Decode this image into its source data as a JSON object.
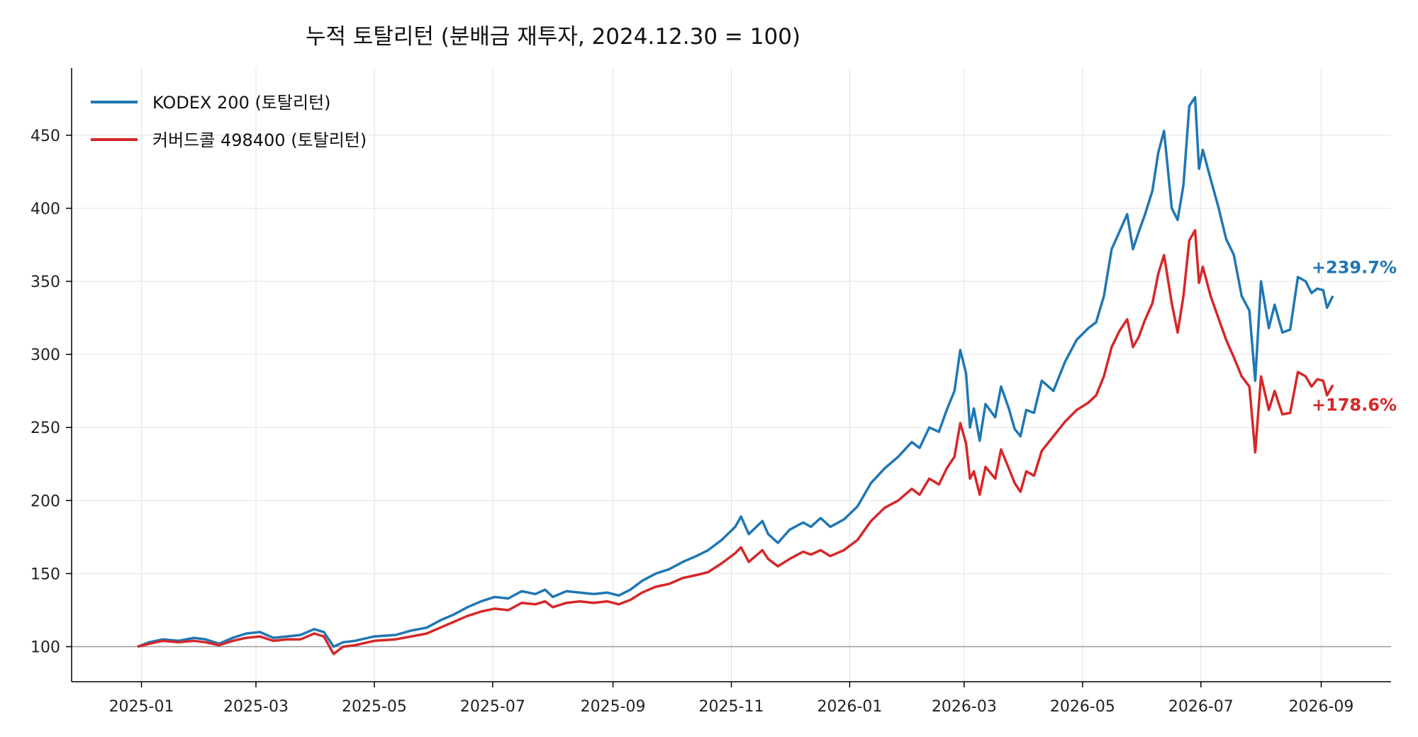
{
  "chart_data": {
    "type": "line",
    "title": "누적 토탈리턴 (분배금 재투자, 2024.12.30 = 100)",
    "xlabel": "",
    "ylabel": "",
    "xlim": [
      "2024-11-26",
      "2026-10-07"
    ],
    "ylim": [
      76,
      496
    ],
    "x_ticks": [
      "2025-01",
      "2025-03",
      "2025-05",
      "2025-07",
      "2025-09",
      "2025-11",
      "2026-01",
      "2026-03",
      "2026-05",
      "2026-07",
      "2026-09"
    ],
    "y_ticks": [
      100,
      150,
      200,
      250,
      300,
      350,
      400,
      450
    ],
    "grid": true,
    "legend_position": "top-left",
    "reference_line": 100,
    "series": [
      {
        "name": "KODEX 200 (토탈리턴)",
        "color": "#1f77b4",
        "end_label": "+239.7%",
        "points": [
          [
            "2024-12-30",
            100
          ],
          [
            "2025-01-05",
            103
          ],
          [
            "2025-01-12",
            105
          ],
          [
            "2025-01-20",
            104
          ],
          [
            "2025-01-28",
            106
          ],
          [
            "2025-02-03",
            105
          ],
          [
            "2025-02-10",
            102
          ],
          [
            "2025-02-17",
            106
          ],
          [
            "2025-02-24",
            109
          ],
          [
            "2025-03-03",
            110
          ],
          [
            "2025-03-10",
            106
          ],
          [
            "2025-03-17",
            107
          ],
          [
            "2025-03-24",
            108
          ],
          [
            "2025-03-31",
            112
          ],
          [
            "2025-04-05",
            110
          ],
          [
            "2025-04-10",
            100
          ],
          [
            "2025-04-15",
            103
          ],
          [
            "2025-04-21",
            104
          ],
          [
            "2025-05-01",
            107
          ],
          [
            "2025-05-12",
            108
          ],
          [
            "2025-05-20",
            111
          ],
          [
            "2025-05-28",
            113
          ],
          [
            "2025-06-04",
            118
          ],
          [
            "2025-06-11",
            122
          ],
          [
            "2025-06-18",
            127
          ],
          [
            "2025-06-25",
            131
          ],
          [
            "2025-07-02",
            134
          ],
          [
            "2025-07-09",
            133
          ],
          [
            "2025-07-16",
            138
          ],
          [
            "2025-07-23",
            136
          ],
          [
            "2025-07-28",
            139
          ],
          [
            "2025-08-01",
            134
          ],
          [
            "2025-08-08",
            138
          ],
          [
            "2025-08-15",
            137
          ],
          [
            "2025-08-22",
            136
          ],
          [
            "2025-08-29",
            137
          ],
          [
            "2025-09-04",
            135
          ],
          [
            "2025-09-10",
            139
          ],
          [
            "2025-09-16",
            145
          ],
          [
            "2025-09-23",
            150
          ],
          [
            "2025-09-30",
            153
          ],
          [
            "2025-10-07",
            158
          ],
          [
            "2025-10-14",
            162
          ],
          [
            "2025-10-20",
            166
          ],
          [
            "2025-10-27",
            173
          ],
          [
            "2025-11-03",
            182
          ],
          [
            "2025-11-06",
            189
          ],
          [
            "2025-11-10",
            177
          ],
          [
            "2025-11-17",
            186
          ],
          [
            "2025-11-20",
            177
          ],
          [
            "2025-11-25",
            171
          ],
          [
            "2025-12-01",
            180
          ],
          [
            "2025-12-08",
            185
          ],
          [
            "2025-12-12",
            182
          ],
          [
            "2025-12-17",
            188
          ],
          [
            "2025-12-22",
            182
          ],
          [
            "2025-12-29",
            187
          ],
          [
            "2026-01-05",
            196
          ],
          [
            "2026-01-12",
            212
          ],
          [
            "2026-01-19",
            222
          ],
          [
            "2026-01-26",
            230
          ],
          [
            "2026-02-02",
            240
          ],
          [
            "2026-02-06",
            236
          ],
          [
            "2026-02-11",
            250
          ],
          [
            "2026-02-16",
            247
          ],
          [
            "2026-02-20",
            262
          ],
          [
            "2026-02-24",
            275
          ],
          [
            "2026-02-27",
            303
          ],
          [
            "2026-03-02",
            287
          ],
          [
            "2026-03-04",
            250
          ],
          [
            "2026-03-06",
            263
          ],
          [
            "2026-03-09",
            241
          ],
          [
            "2026-03-12",
            266
          ],
          [
            "2026-03-17",
            257
          ],
          [
            "2026-03-20",
            278
          ],
          [
            "2026-03-24",
            263
          ],
          [
            "2026-03-27",
            249
          ],
          [
            "2026-03-30",
            244
          ],
          [
            "2026-04-02",
            262
          ],
          [
            "2026-04-06",
            260
          ],
          [
            "2026-04-10",
            282
          ],
          [
            "2026-04-16",
            275
          ],
          [
            "2026-04-22",
            295
          ],
          [
            "2026-04-28",
            310
          ],
          [
            "2026-05-04",
            318
          ],
          [
            "2026-05-08",
            322
          ],
          [
            "2026-05-12",
            340
          ],
          [
            "2026-05-16",
            372
          ],
          [
            "2026-05-20",
            384
          ],
          [
            "2026-05-24",
            396
          ],
          [
            "2026-05-27",
            372
          ],
          [
            "2026-05-30",
            384
          ],
          [
            "2026-06-02",
            395
          ],
          [
            "2026-06-06",
            412
          ],
          [
            "2026-06-09",
            438
          ],
          [
            "2026-06-12",
            453
          ],
          [
            "2026-06-16",
            400
          ],
          [
            "2026-06-19",
            392
          ],
          [
            "2026-06-22",
            416
          ],
          [
            "2026-06-25",
            470
          ],
          [
            "2026-06-28",
            476
          ],
          [
            "2026-06-30",
            427
          ],
          [
            "2026-07-02",
            440
          ],
          [
            "2026-07-06",
            420
          ],
          [
            "2026-07-10",
            401
          ],
          [
            "2026-07-14",
            379
          ],
          [
            "2026-07-18",
            368
          ],
          [
            "2026-07-22",
            340
          ],
          [
            "2026-07-26",
            330
          ],
          [
            "2026-07-29",
            282
          ],
          [
            "2026-08-01",
            350
          ],
          [
            "2026-08-05",
            318
          ],
          [
            "2026-08-08",
            334
          ],
          [
            "2026-08-12",
            315
          ],
          [
            "2026-08-16",
            317
          ],
          [
            "2026-08-20",
            353
          ],
          [
            "2026-08-24",
            350
          ],
          [
            "2026-08-27",
            342
          ],
          [
            "2026-08-30",
            345
          ],
          [
            "2026-09-02",
            344
          ],
          [
            "2026-09-04",
            332
          ],
          [
            "2026-09-07",
            340
          ]
        ]
      },
      {
        "name": "커버드콜 498400 (토탈리턴)",
        "color": "#d62728",
        "end_label": "+178.6%",
        "points": [
          [
            "2024-12-30",
            100
          ],
          [
            "2025-01-05",
            102
          ],
          [
            "2025-01-12",
            104
          ],
          [
            "2025-01-20",
            103
          ],
          [
            "2025-01-28",
            104
          ],
          [
            "2025-02-03",
            103
          ],
          [
            "2025-02-10",
            101
          ],
          [
            "2025-02-17",
            104
          ],
          [
            "2025-02-24",
            106
          ],
          [
            "2025-03-03",
            107
          ],
          [
            "2025-03-10",
            104
          ],
          [
            "2025-03-17",
            105
          ],
          [
            "2025-03-24",
            105
          ],
          [
            "2025-03-31",
            109
          ],
          [
            "2025-04-05",
            107
          ],
          [
            "2025-04-10",
            95
          ],
          [
            "2025-04-15",
            100
          ],
          [
            "2025-04-21",
            101
          ],
          [
            "2025-05-01",
            104
          ],
          [
            "2025-05-12",
            105
          ],
          [
            "2025-05-20",
            107
          ],
          [
            "2025-05-28",
            109
          ],
          [
            "2025-06-04",
            113
          ],
          [
            "2025-06-11",
            117
          ],
          [
            "2025-06-18",
            121
          ],
          [
            "2025-06-25",
            124
          ],
          [
            "2025-07-02",
            126
          ],
          [
            "2025-07-09",
            125
          ],
          [
            "2025-07-16",
            130
          ],
          [
            "2025-07-23",
            129
          ],
          [
            "2025-07-28",
            131
          ],
          [
            "2025-08-01",
            127
          ],
          [
            "2025-08-08",
            130
          ],
          [
            "2025-08-15",
            131
          ],
          [
            "2025-08-22",
            130
          ],
          [
            "2025-08-29",
            131
          ],
          [
            "2025-09-04",
            129
          ],
          [
            "2025-09-10",
            132
          ],
          [
            "2025-09-16",
            137
          ],
          [
            "2025-09-23",
            141
          ],
          [
            "2025-09-30",
            143
          ],
          [
            "2025-10-07",
            147
          ],
          [
            "2025-10-14",
            149
          ],
          [
            "2025-10-20",
            151
          ],
          [
            "2025-10-27",
            157
          ],
          [
            "2025-11-03",
            164
          ],
          [
            "2025-11-06",
            168
          ],
          [
            "2025-11-10",
            158
          ],
          [
            "2025-11-17",
            166
          ],
          [
            "2025-11-20",
            160
          ],
          [
            "2025-11-25",
            155
          ],
          [
            "2025-12-01",
            160
          ],
          [
            "2025-12-08",
            165
          ],
          [
            "2025-12-12",
            163
          ],
          [
            "2025-12-17",
            166
          ],
          [
            "2025-12-22",
            162
          ],
          [
            "2025-12-29",
            166
          ],
          [
            "2026-01-05",
            173
          ],
          [
            "2026-01-12",
            186
          ],
          [
            "2026-01-19",
            195
          ],
          [
            "2026-01-26",
            200
          ],
          [
            "2026-02-02",
            208
          ],
          [
            "2026-02-06",
            204
          ],
          [
            "2026-02-11",
            215
          ],
          [
            "2026-02-16",
            211
          ],
          [
            "2026-02-20",
            222
          ],
          [
            "2026-02-24",
            230
          ],
          [
            "2026-02-27",
            253
          ],
          [
            "2026-03-02",
            239
          ],
          [
            "2026-03-04",
            215
          ],
          [
            "2026-03-06",
            220
          ],
          [
            "2026-03-09",
            204
          ],
          [
            "2026-03-12",
            223
          ],
          [
            "2026-03-17",
            215
          ],
          [
            "2026-03-20",
            235
          ],
          [
            "2026-03-24",
            222
          ],
          [
            "2026-03-27",
            212
          ],
          [
            "2026-03-30",
            206
          ],
          [
            "2026-04-02",
            220
          ],
          [
            "2026-04-06",
            217
          ],
          [
            "2026-04-10",
            234
          ],
          [
            "2026-04-16",
            244
          ],
          [
            "2026-04-22",
            254
          ],
          [
            "2026-04-28",
            262
          ],
          [
            "2026-05-04",
            267
          ],
          [
            "2026-05-08",
            272
          ],
          [
            "2026-05-12",
            285
          ],
          [
            "2026-05-16",
            305
          ],
          [
            "2026-05-20",
            316
          ],
          [
            "2026-05-24",
            324
          ],
          [
            "2026-05-27",
            305
          ],
          [
            "2026-05-30",
            312
          ],
          [
            "2026-06-02",
            323
          ],
          [
            "2026-06-06",
            335
          ],
          [
            "2026-06-09",
            355
          ],
          [
            "2026-06-12",
            368
          ],
          [
            "2026-06-16",
            335
          ],
          [
            "2026-06-19",
            315
          ],
          [
            "2026-06-22",
            340
          ],
          [
            "2026-06-25",
            378
          ],
          [
            "2026-06-28",
            385
          ],
          [
            "2026-06-30",
            349
          ],
          [
            "2026-07-02",
            360
          ],
          [
            "2026-07-06",
            340
          ],
          [
            "2026-07-10",
            325
          ],
          [
            "2026-07-14",
            310
          ],
          [
            "2026-07-18",
            298
          ],
          [
            "2026-07-22",
            285
          ],
          [
            "2026-07-26",
            278
          ],
          [
            "2026-07-29",
            233
          ],
          [
            "2026-08-01",
            285
          ],
          [
            "2026-08-05",
            262
          ],
          [
            "2026-08-08",
            275
          ],
          [
            "2026-08-12",
            259
          ],
          [
            "2026-08-16",
            260
          ],
          [
            "2026-08-20",
            288
          ],
          [
            "2026-08-24",
            285
          ],
          [
            "2026-08-27",
            278
          ],
          [
            "2026-08-30",
            283
          ],
          [
            "2026-09-02",
            282
          ],
          [
            "2026-09-04",
            272
          ],
          [
            "2026-09-07",
            279
          ]
        ]
      }
    ]
  }
}
